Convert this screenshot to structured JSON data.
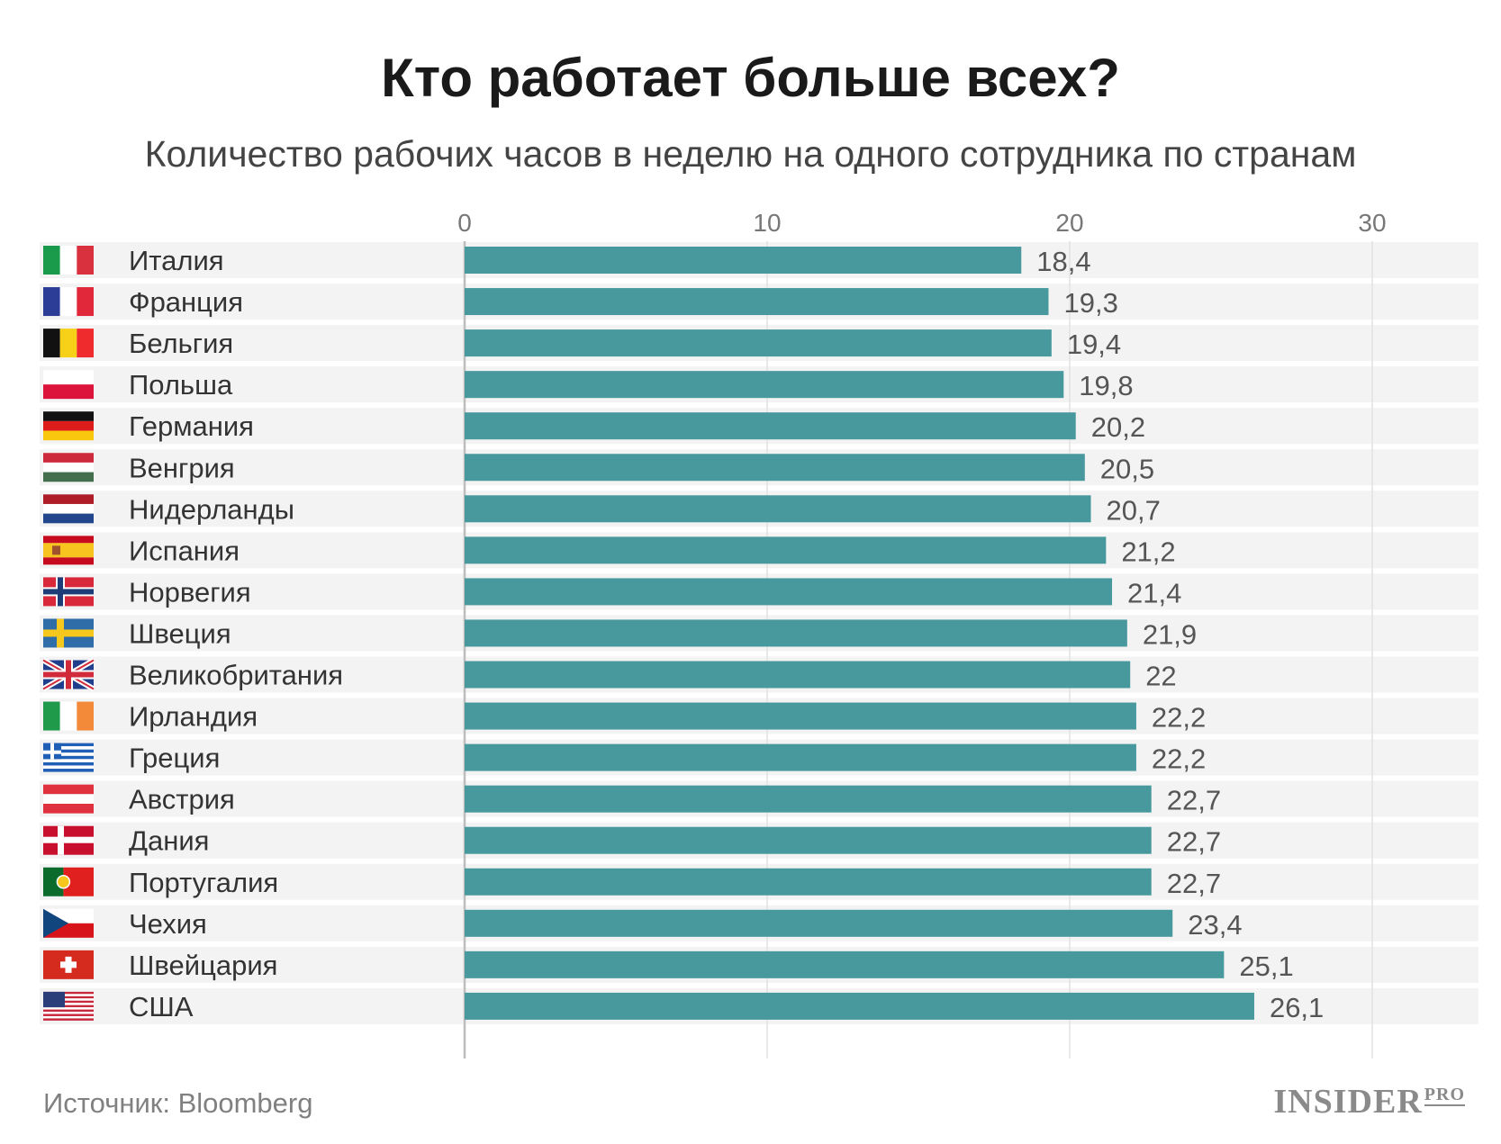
{
  "chart_data": {
    "type": "bar",
    "orientation": "horizontal",
    "title": "Кто работает больше всех?",
    "subtitle": "Количество рабочих часов в неделю на одного сотрудника по странам",
    "categories": [
      "Италия",
      "Франция",
      "Бельгия",
      "Польша",
      "Германия",
      "Венгрия",
      "Нидерланды",
      "Испания",
      "Норвегия",
      "Швеция",
      "Великобритания",
      "Ирландия",
      "Греция",
      "Австрия",
      "Дания",
      "Португалия",
      "Чехия",
      "Швейцария",
      "США"
    ],
    "values": [
      18.4,
      19.3,
      19.4,
      19.8,
      20.2,
      20.5,
      20.7,
      21.2,
      21.4,
      21.9,
      22.0,
      22.2,
      22.2,
      22.7,
      22.7,
      22.7,
      23.4,
      25.1,
      26.1
    ],
    "value_labels": [
      "18,4",
      "19,3",
      "19,4",
      "19,8",
      "20,2",
      "20,5",
      "20,7",
      "21,2",
      "21,4",
      "21,9",
      "22",
      "22,2",
      "22,2",
      "22,7",
      "22,7",
      "22,7",
      "23,4",
      "25,1",
      "26,1"
    ],
    "flags": [
      "italy-flag",
      "france-flag",
      "belgium-flag",
      "poland-flag",
      "germany-flag",
      "hungary-flag",
      "netherlands-flag",
      "spain-flag",
      "norway-flag",
      "sweden-flag",
      "uk-flag",
      "ireland-flag",
      "greece-flag",
      "austria-flag",
      "denmark-flag",
      "portugal-flag",
      "czechia-flag",
      "switzerland-flag",
      "usa-flag"
    ],
    "xticks": [
      0,
      10,
      20,
      30
    ],
    "xtick_labels": [
      "0",
      "10",
      "20",
      "30"
    ],
    "xlim": [
      0,
      33.3
    ],
    "grid": true,
    "bar_color": "#48999d",
    "row_band_color": "#f3f3f3"
  },
  "footer": {
    "source": "Источник: Bloomberg",
    "brand": "INSIDER",
    "brand_suffix": "PRO"
  }
}
